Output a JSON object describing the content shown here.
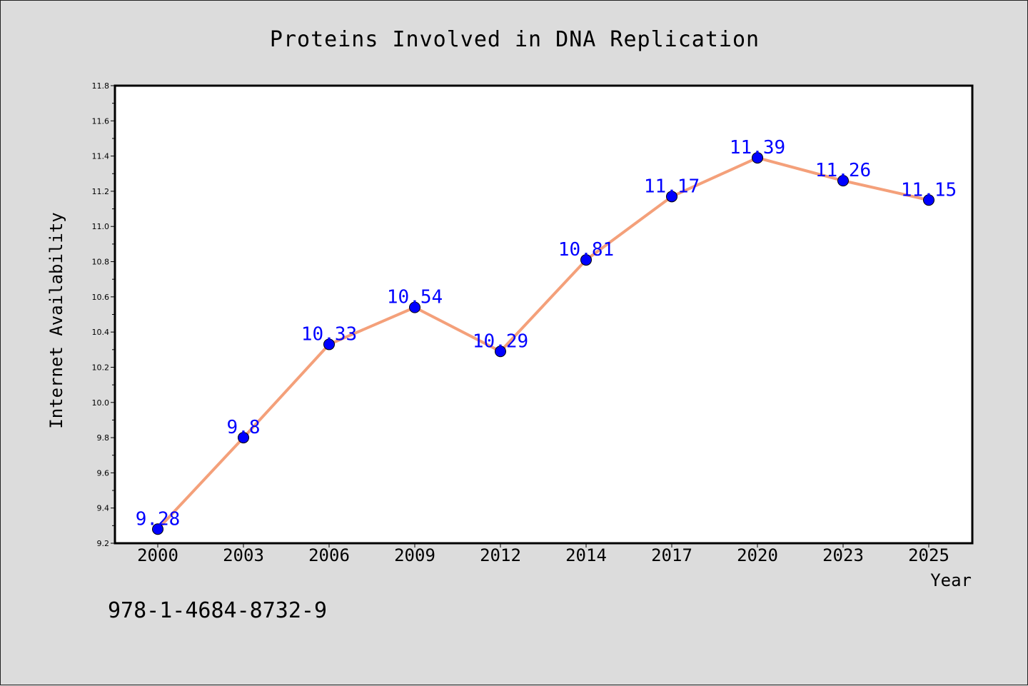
{
  "chart_data": {
    "type": "line",
    "title": "Proteins Involved in DNA Replication",
    "xlabel": "Year",
    "ylabel": "Internet Availability",
    "categories": [
      "2000",
      "2003",
      "2006",
      "2009",
      "2012",
      "2014",
      "2017",
      "2020",
      "2023",
      "2025"
    ],
    "values": [
      9.28,
      9.8,
      10.33,
      10.54,
      10.29,
      10.81,
      11.17,
      11.39,
      11.26,
      11.15
    ],
    "data_labels": [
      "9.28",
      "9.8",
      "10.33",
      "10.54",
      "10.29",
      "10.81",
      "11.17",
      "11.39",
      "11.26",
      "11.15"
    ],
    "ylim": [
      9.2,
      11.8
    ],
    "yticks": [
      "9.2",
      "9.4",
      "9.6",
      "9.8",
      "10.0",
      "10.2",
      "10.4",
      "10.6",
      "10.8",
      "11.0",
      "11.2",
      "11.4",
      "11.6",
      "11.8"
    ],
    "grid": false,
    "line_color": "#f4a07a",
    "marker_color": "#0000ff",
    "label_color": "#0000ff"
  },
  "footer": {
    "isbn": "978-1-4684-8732-9"
  }
}
